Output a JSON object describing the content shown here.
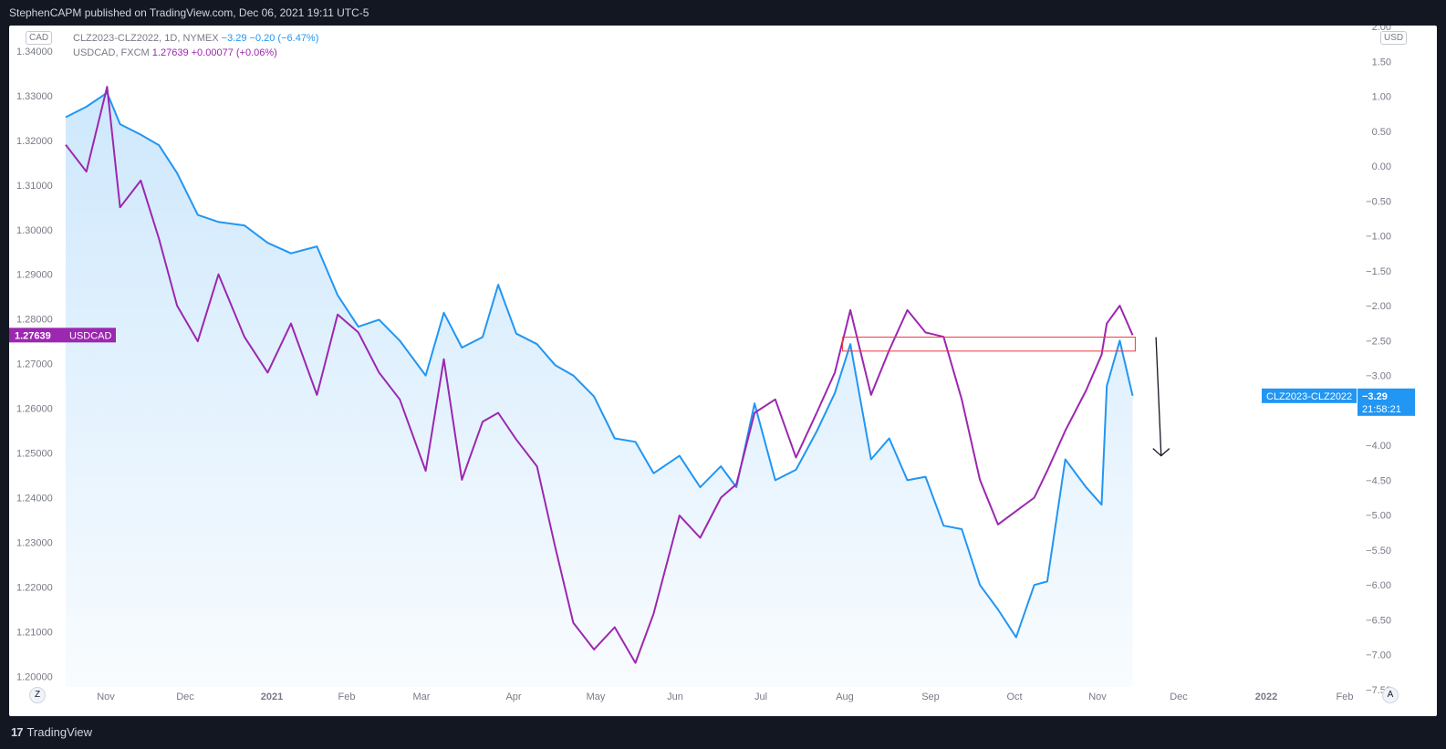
{
  "header": {
    "publish_text": "StephenCAPM published on TradingView.com, Dec 06, 2021 19:11 UTC-5"
  },
  "footer": {
    "brand": "TradingView",
    "logo_mark": "17"
  },
  "legend": {
    "series1": {
      "symbol": "CLZ2023-CLZ2022, 1D, NYMEX",
      "last": "−3.29",
      "change": "−0.20 (−6.47%)"
    },
    "series2": {
      "symbol": "USDCAD, FXCM",
      "last": "1.27639",
      "change": "+0.00077 (+0.06%)"
    }
  },
  "scales": {
    "left_currency": "CAD",
    "right_currency": "USD",
    "left_ticks": [
      "1.34000",
      "1.33000",
      "1.32000",
      "1.31000",
      "1.30000",
      "1.29000",
      "1.28000",
      "1.27000",
      "1.26000",
      "1.25000",
      "1.24000",
      "1.23000",
      "1.22000",
      "1.21000",
      "1.20000"
    ],
    "right_ticks": [
      "2.00",
      "1.50",
      "1.00",
      "0.50",
      "0.00",
      "−0.50",
      "−1.00",
      "−1.50",
      "−2.00",
      "−2.50",
      "−3.00",
      "−3.50",
      "−4.00",
      "−4.50",
      "−5.00",
      "−5.50",
      "−6.00",
      "−6.50",
      "−7.00",
      "−7.50"
    ],
    "x_ticks": [
      "Nov",
      "Dec",
      "2021",
      "Feb",
      "Mar",
      "Apr",
      "May",
      "Jun",
      "Jul",
      "Aug",
      "Sep",
      "Oct",
      "Nov",
      "Dec",
      "2022",
      "Feb"
    ],
    "left_badge": {
      "value": "1.27639",
      "label": "USDCAD"
    },
    "right_badge": {
      "label": "CLZ2023-CLZ2022",
      "value": "−3.29",
      "countdown": "21:58:21"
    }
  },
  "buttons": {
    "zoom": "Z",
    "auto": "A"
  },
  "colors": {
    "spread": "#2196f3",
    "usdcad": "#9c27b0",
    "box": "#f23645",
    "arrow": "#131722"
  },
  "chart_data": {
    "type": "line",
    "x_range": [
      "2020-10-20",
      "2022-02-28"
    ],
    "series": [
      {
        "name": "CLZ2023-CLZ2022",
        "axis": "right",
        "ylim": [
          -7.5,
          2.0
        ],
        "x": [
          "2020-10-20",
          "2020-10-28",
          "2020-11-05",
          "2020-11-10",
          "2020-11-18",
          "2020-11-25",
          "2020-12-02",
          "2020-12-10",
          "2020-12-18",
          "2020-12-28",
          "2021-01-06",
          "2021-01-15",
          "2021-01-25",
          "2021-02-02",
          "2021-02-10",
          "2021-02-18",
          "2021-02-26",
          "2021-03-08",
          "2021-03-15",
          "2021-03-22",
          "2021-03-30",
          "2021-04-05",
          "2021-04-12",
          "2021-04-20",
          "2021-04-27",
          "2021-05-04",
          "2021-05-12",
          "2021-05-20",
          "2021-05-28",
          "2021-06-04",
          "2021-06-14",
          "2021-06-22",
          "2021-06-30",
          "2021-07-06",
          "2021-07-13",
          "2021-07-21",
          "2021-07-29",
          "2021-08-06",
          "2021-08-13",
          "2021-08-19",
          "2021-08-27",
          "2021-09-03",
          "2021-09-10",
          "2021-09-17",
          "2021-09-24",
          "2021-10-01",
          "2021-10-08",
          "2021-10-15",
          "2021-10-22",
          "2021-10-29",
          "2021-11-03",
          "2021-11-10",
          "2021-11-18",
          "2021-11-24",
          "2021-11-26",
          "2021-12-01",
          "2021-12-06"
        ],
        "values": [
          0.7,
          0.85,
          1.05,
          0.6,
          0.45,
          0.3,
          -0.1,
          -0.7,
          -0.8,
          -0.85,
          -1.1,
          -1.25,
          -1.15,
          -1.85,
          -2.3,
          -2.2,
          -2.5,
          -3.0,
          -2.1,
          -2.6,
          -2.45,
          -1.7,
          -2.4,
          -2.55,
          -2.85,
          -3.0,
          -3.3,
          -3.9,
          -3.95,
          -4.4,
          -4.15,
          -4.6,
          -4.3,
          -4.6,
          -3.4,
          -4.5,
          -4.35,
          -3.8,
          -3.25,
          -2.55,
          -4.2,
          -3.9,
          -4.5,
          -4.45,
          -5.15,
          -5.2,
          -6.0,
          -6.35,
          -6.75,
          -6.0,
          -5.95,
          -4.2,
          -4.6,
          -4.85,
          -3.15,
          -2.5,
          -3.29
        ]
      },
      {
        "name": "USDCAD",
        "axis": "left",
        "ylim": [
          1.197,
          1.3455
        ],
        "x": [
          "2020-10-20",
          "2020-10-28",
          "2020-11-05",
          "2020-11-10",
          "2020-11-18",
          "2020-11-25",
          "2020-12-02",
          "2020-12-10",
          "2020-12-18",
          "2020-12-28",
          "2021-01-06",
          "2021-01-15",
          "2021-01-25",
          "2021-02-02",
          "2021-02-10",
          "2021-02-18",
          "2021-02-26",
          "2021-03-08",
          "2021-03-15",
          "2021-03-22",
          "2021-03-30",
          "2021-04-05",
          "2021-04-12",
          "2021-04-20",
          "2021-04-27",
          "2021-05-04",
          "2021-05-12",
          "2021-05-20",
          "2021-05-28",
          "2021-06-04",
          "2021-06-14",
          "2021-06-22",
          "2021-06-30",
          "2021-07-06",
          "2021-07-13",
          "2021-07-21",
          "2021-07-29",
          "2021-08-06",
          "2021-08-13",
          "2021-08-19",
          "2021-08-27",
          "2021-09-03",
          "2021-09-10",
          "2021-09-17",
          "2021-09-24",
          "2021-10-01",
          "2021-10-08",
          "2021-10-15",
          "2021-10-22",
          "2021-10-29",
          "2021-11-03",
          "2021-11-10",
          "2021-11-18",
          "2021-11-24",
          "2021-11-26",
          "2021-12-01",
          "2021-12-06"
        ],
        "values": [
          1.319,
          1.313,
          1.332,
          1.305,
          1.311,
          1.298,
          1.283,
          1.275,
          1.29,
          1.276,
          1.268,
          1.279,
          1.263,
          1.281,
          1.277,
          1.268,
          1.262,
          1.246,
          1.271,
          1.244,
          1.257,
          1.259,
          1.253,
          1.247,
          1.229,
          1.212,
          1.206,
          1.211,
          1.203,
          1.214,
          1.236,
          1.231,
          1.24,
          1.243,
          1.259,
          1.262,
          1.249,
          1.259,
          1.268,
          1.282,
          1.263,
          1.273,
          1.282,
          1.277,
          1.276,
          1.262,
          1.244,
          1.234,
          1.237,
          1.24,
          1.246,
          1.255,
          1.264,
          1.272,
          1.279,
          1.283,
          1.27639
        ]
      }
    ],
    "annotations": [
      {
        "type": "rectangle",
        "color": "#f23645",
        "x": [
          "2021-08-16",
          "2021-12-07"
        ],
        "y_right": [
          -2.45,
          -2.65
        ]
      },
      {
        "type": "arrow",
        "color": "#131722",
        "x": [
          "2021-12-15",
          "2021-12-17"
        ],
        "y_right": [
          -2.45,
          -4.15
        ],
        "direction": "down"
      }
    ]
  }
}
